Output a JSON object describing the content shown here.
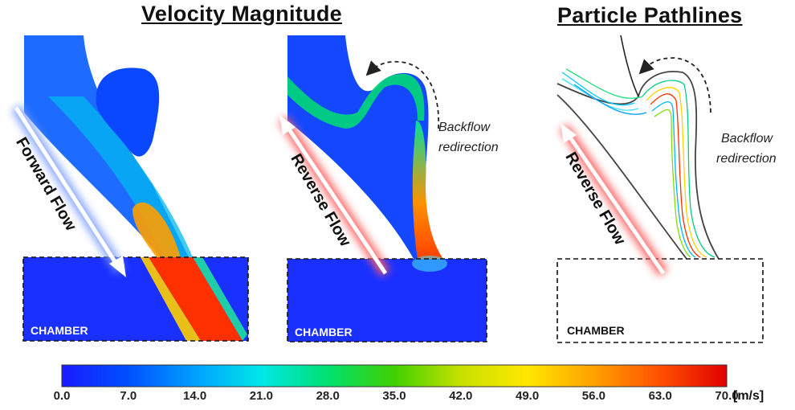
{
  "titles": {
    "velocity": "Velocity Magnitude",
    "pathlines": "Particle Pathlines"
  },
  "panels": {
    "forward": {
      "arrow_label": "Forward Flow",
      "chamber_label": "CHAMBER"
    },
    "reverse": {
      "arrow_label": "Reverse Flow",
      "chamber_label": "CHAMBER",
      "annotation_line1": "Backflow",
      "annotation_line2": "redirection"
    },
    "pathlines": {
      "arrow_label": "Reverse Flow",
      "chamber_label": "CHAMBER",
      "annotation_line1": "Backflow",
      "annotation_line2": "redirection"
    }
  },
  "colorbar": {
    "unit": "[m/s]",
    "min": 0.0,
    "max": 70.0,
    "ticks": [
      "0.0",
      "7.0",
      "14.0",
      "21.0",
      "28.0",
      "35.0",
      "42.0",
      "49.0",
      "56.0",
      "63.0",
      "70.0"
    ],
    "colors": [
      "#1a1aff",
      "#0050ff",
      "#00a0ff",
      "#00e8e8",
      "#00e070",
      "#40d000",
      "#c8e000",
      "#ffe800",
      "#ffa000",
      "#ff5000",
      "#e00000"
    ]
  }
}
